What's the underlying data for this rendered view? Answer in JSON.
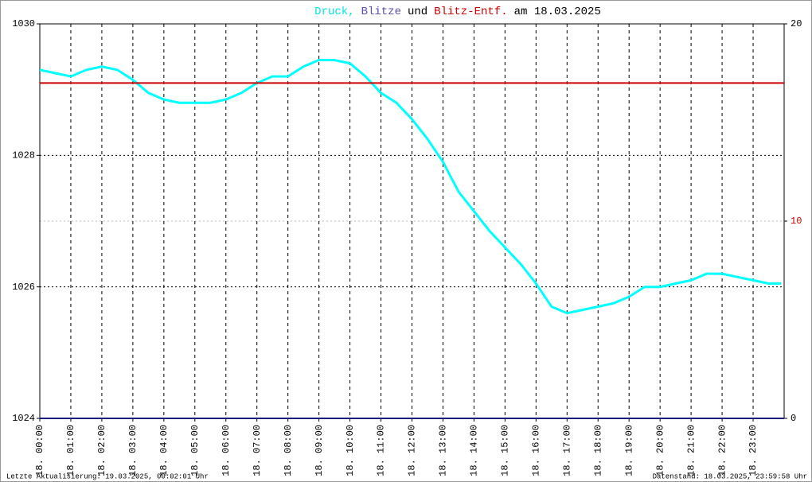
{
  "chart_data": {
    "type": "line",
    "title_parts": [
      {
        "text": "Druck,",
        "color": "#00e5e5"
      },
      {
        "text": "Blitze",
        "color": "#5a4fb0"
      },
      {
        "text": "und",
        "color": "#000000"
      },
      {
        "text": "Blitz-Entf.",
        "color": "#cc0000"
      },
      {
        "text": "am 18.03.2025",
        "color": "#000000"
      }
    ],
    "xlim": [
      0,
      24
    ],
    "xticks": [
      {
        "value": 0,
        "label": "18. 00:00"
      },
      {
        "value": 1,
        "label": "18. 01:00"
      },
      {
        "value": 2,
        "label": "18. 02:00"
      },
      {
        "value": 3,
        "label": "18. 03:00"
      },
      {
        "value": 4,
        "label": "18. 04:00"
      },
      {
        "value": 5,
        "label": "18. 05:00"
      },
      {
        "value": 6,
        "label": "18. 06:00"
      },
      {
        "value": 7,
        "label": "18. 07:00"
      },
      {
        "value": 8,
        "label": "18. 08:00"
      },
      {
        "value": 9,
        "label": "18. 09:00"
      },
      {
        "value": 10,
        "label": "18. 10:00"
      },
      {
        "value": 11,
        "label": "18. 11:00"
      },
      {
        "value": 12,
        "label": "18. 12:00"
      },
      {
        "value": 13,
        "label": "18. 13:00"
      },
      {
        "value": 14,
        "label": "18. 14:00"
      },
      {
        "value": 15,
        "label": "18. 15:00"
      },
      {
        "value": 16,
        "label": "18. 16:00"
      },
      {
        "value": 17,
        "label": "18. 17:00"
      },
      {
        "value": 18,
        "label": "18. 18:00"
      },
      {
        "value": 19,
        "label": "18. 19:00"
      },
      {
        "value": 20,
        "label": "18. 20:00"
      },
      {
        "value": 21,
        "label": "18. 21:00"
      },
      {
        "value": 22,
        "label": "18. 22:00"
      },
      {
        "value": 23,
        "label": "18. 23:00"
      }
    ],
    "ylim": [
      1024,
      1030
    ],
    "yticks": [
      1024,
      1026,
      1028,
      1030
    ],
    "y2lim": [
      0,
      20
    ],
    "y2ticks": [
      0,
      10,
      20
    ],
    "grid": true,
    "series": [
      {
        "color": "#00ffff",
        "axis": "y",
        "x": [
          0,
          0.5,
          1,
          1.5,
          2,
          2.5,
          3,
          3.5,
          4,
          4.5,
          5,
          5.5,
          6,
          6.5,
          7,
          7.5,
          8,
          8.5,
          9,
          9.5,
          10,
          10.5,
          11,
          11.5,
          12,
          12.5,
          13,
          13.5,
          14,
          14.5,
          15,
          15.5,
          16,
          16.5,
          17,
          17.5,
          18,
          18.5,
          19,
          19.5,
          20,
          20.5,
          21,
          21.5,
          22,
          22.5,
          23,
          23.5,
          23.9
        ],
        "values": [
          1029.3,
          1029.25,
          1029.2,
          1029.3,
          1029.35,
          1029.3,
          1029.15,
          1028.95,
          1028.85,
          1028.8,
          1028.8,
          1028.8,
          1028.85,
          1028.95,
          1029.1,
          1029.2,
          1029.2,
          1029.35,
          1029.45,
          1029.45,
          1029.4,
          1029.2,
          1028.95,
          1028.8,
          1028.55,
          1028.25,
          1027.9,
          1027.45,
          1027.15,
          1026.85,
          1026.6,
          1026.35,
          1026.05,
          1025.7,
          1025.6,
          1025.65,
          1025.7,
          1025.75,
          1025.85,
          1026.0,
          1026.0,
          1026.05,
          1026.1,
          1026.2,
          1026.2,
          1026.15,
          1026.1,
          1026.05,
          1026.05
        ]
      },
      {
        "color": "#1a1a80",
        "axis": "y2",
        "x": [
          0,
          24
        ],
        "values": [
          0,
          0
        ]
      },
      {
        "color": "#cc0000",
        "axis": "y2",
        "x": [
          0,
          24
        ],
        "values": [
          17,
          17
        ]
      }
    ],
    "footer_left": "Letzte Aktualisierung: 19.03.2025, 00:02:01 Uhr",
    "footer_right": "Datenstand: 18.03.2025, 23:59:58 Uhr"
  }
}
